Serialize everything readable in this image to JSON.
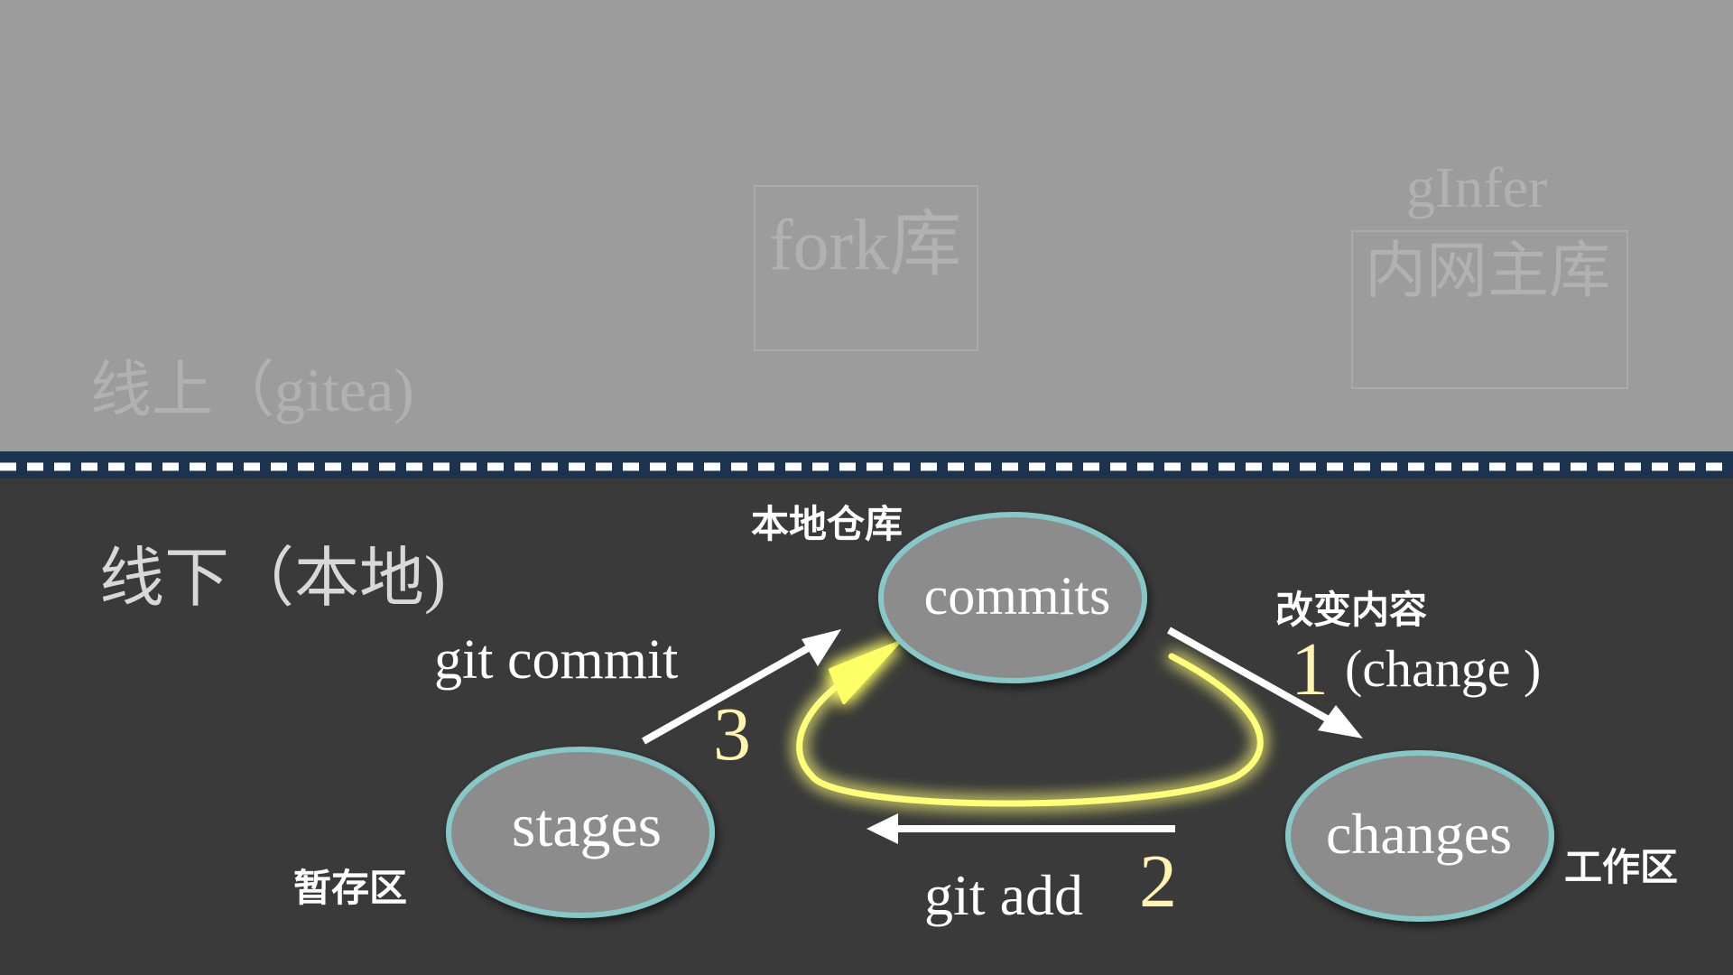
{
  "online": {
    "section_label": "线上（gitea)",
    "fork_label": "fork库",
    "main_repo_line1": "gInfer",
    "main_repo_line2": "内网主库"
  },
  "offline": {
    "section_label": "线下（本地)"
  },
  "nodes": {
    "commits": "commits",
    "stages": "stages",
    "changes": "changes"
  },
  "zone_labels": {
    "local_repo": "本地仓库",
    "staging": "暂存区",
    "workspace": "工作区"
  },
  "steps": {
    "step1_num": "1",
    "step1_title": "改变内容",
    "step1_desc": "(change )",
    "step2_num": "2",
    "step2_cmd": "git add",
    "step3_num": "3",
    "step3_cmd": "git commit"
  },
  "colors": {
    "node_fill": "#8c8c8c",
    "node_border": "#86c8c8",
    "glow": "#ffff80",
    "divider_dash": "#ffffff",
    "divider_base": "#1c3350"
  }
}
